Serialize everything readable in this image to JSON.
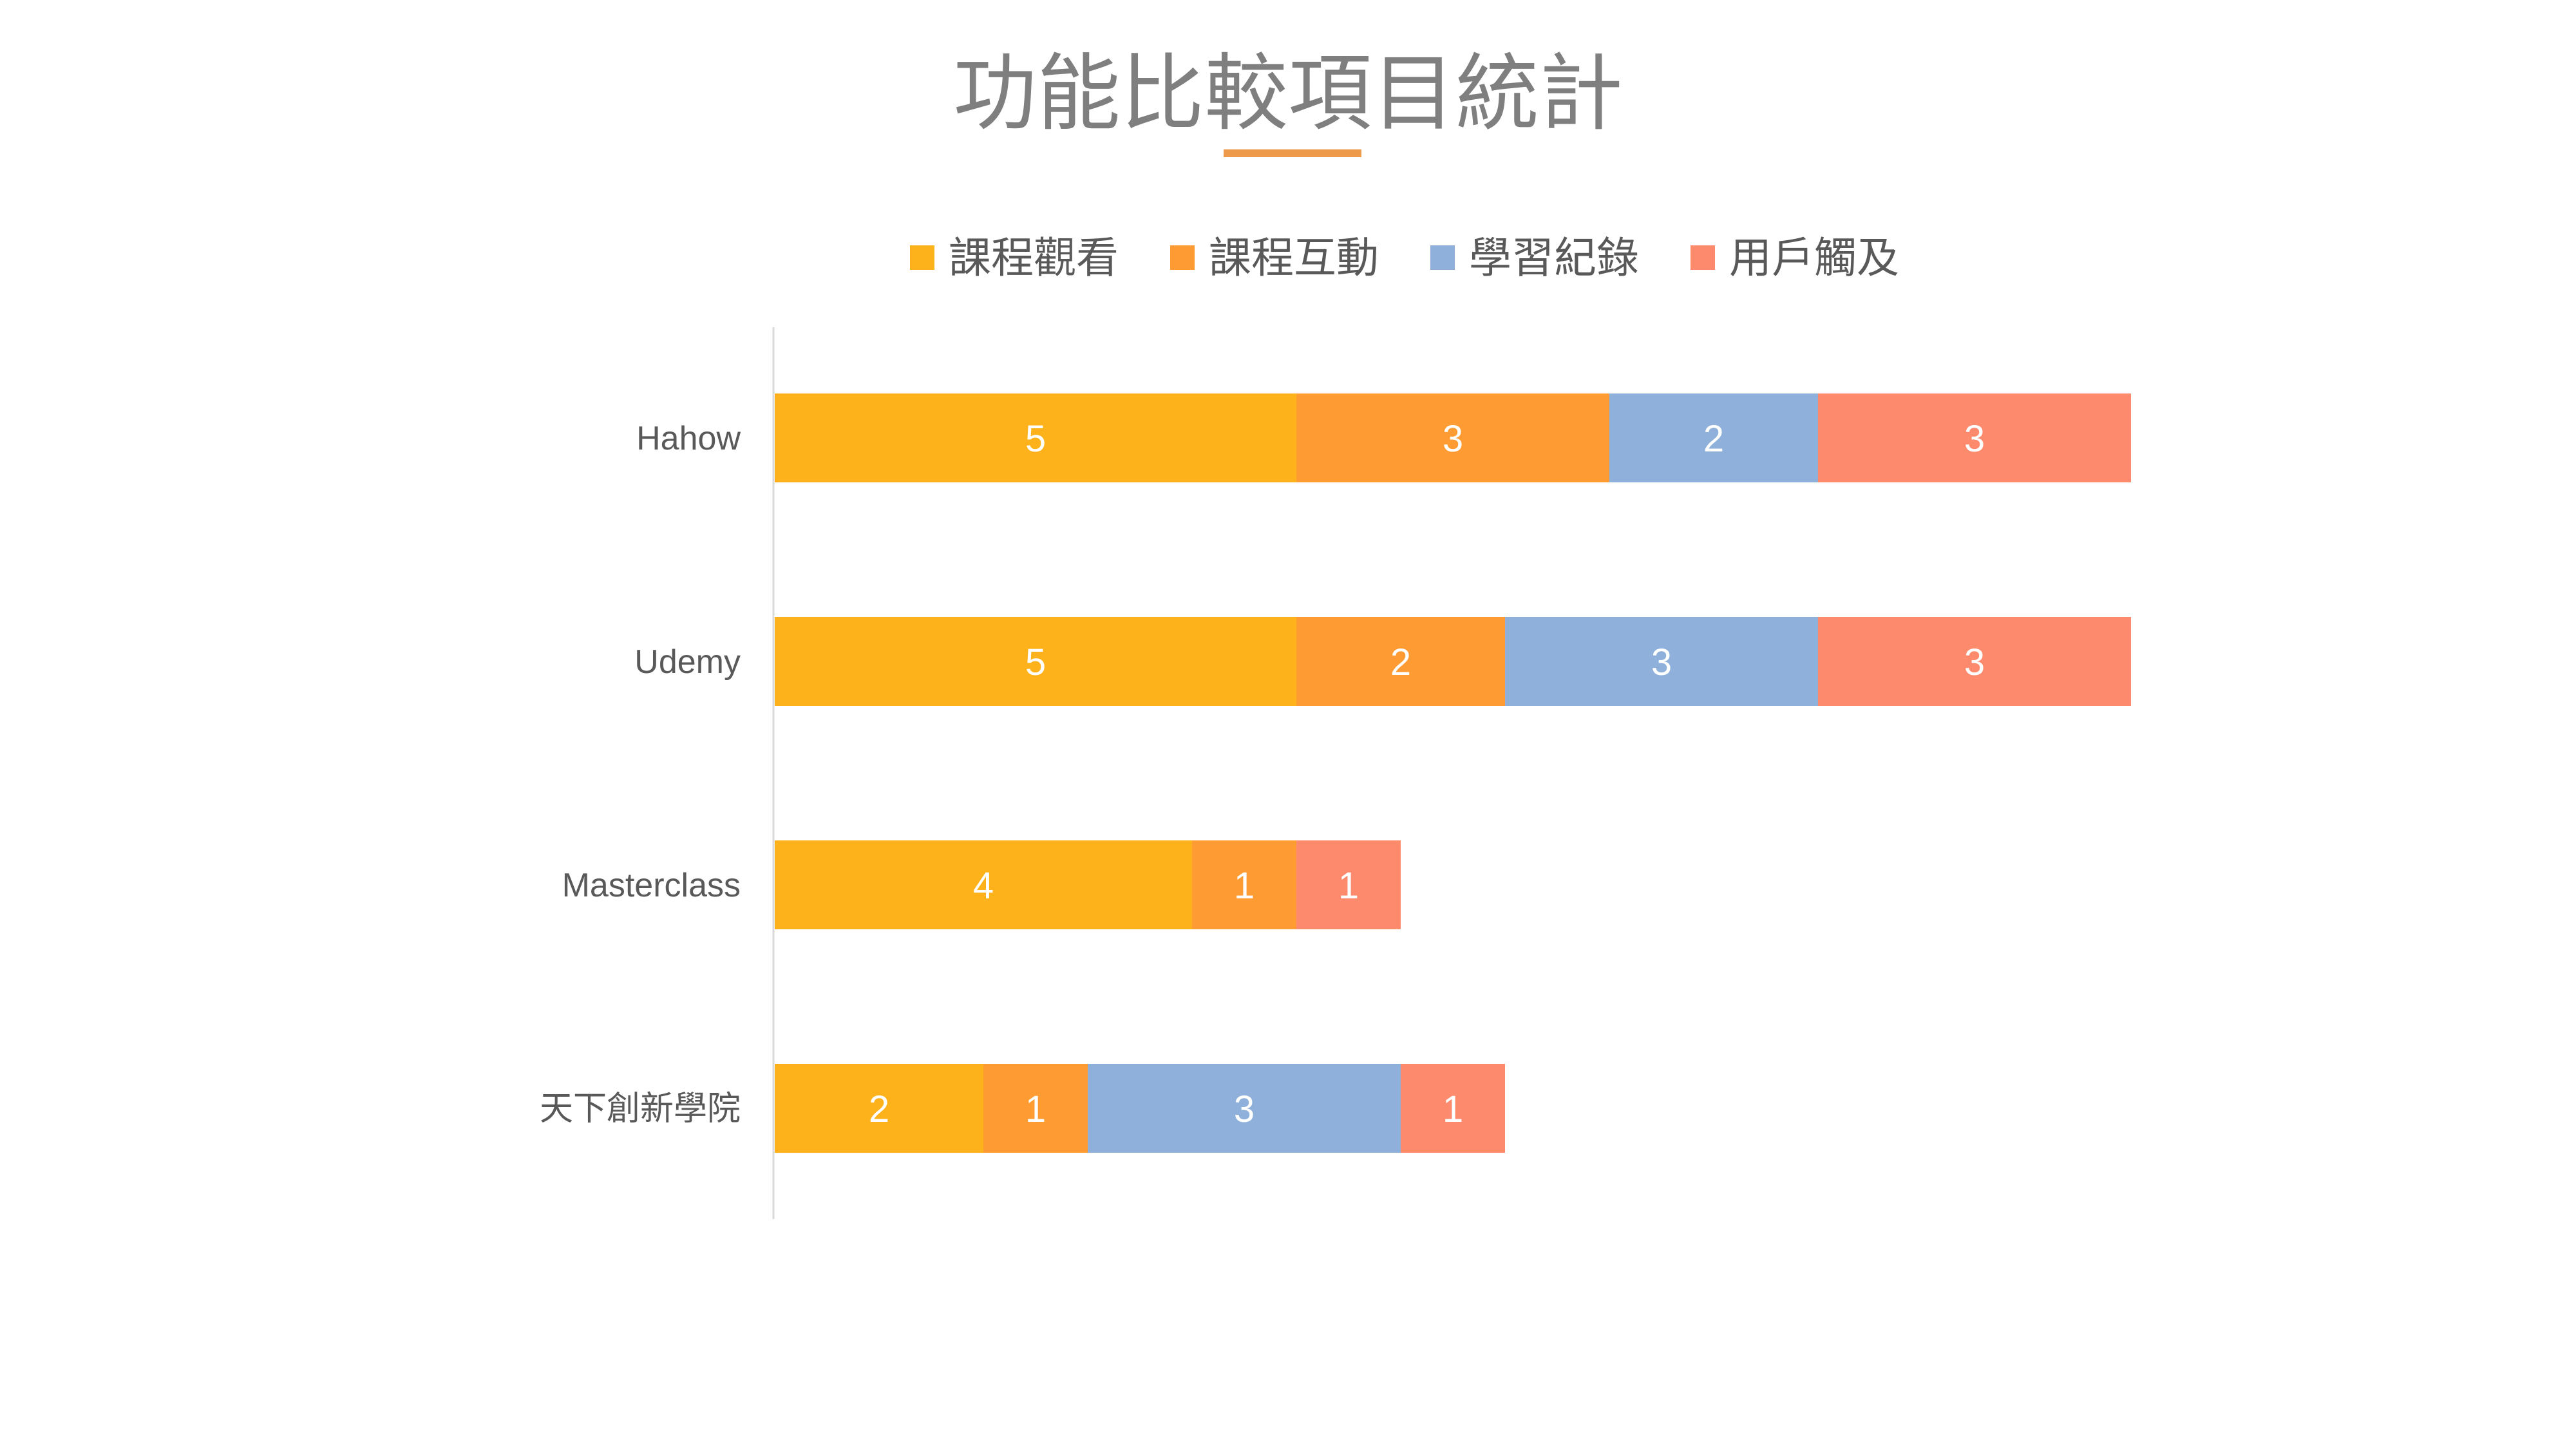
{
  "chart_data": {
    "type": "bar",
    "orientation": "horizontal",
    "stacked": true,
    "title": "功能比較項目統計",
    "categories": [
      "Hahow",
      "Udemy",
      "Masterclass",
      "天下創新學院"
    ],
    "series": [
      {
        "name": "課程觀看",
        "color": "#fdb11a",
        "values": [
          5,
          5,
          4,
          2
        ]
      },
      {
        "name": "課程互動",
        "color": "#fe9c33",
        "values": [
          3,
          2,
          1,
          1
        ]
      },
      {
        "name": "學習紀錄",
        "color": "#8eb0da",
        "values": [
          2,
          3,
          0,
          3
        ]
      },
      {
        "name": "用戶觸及",
        "color": "#fe8a6d",
        "values": [
          3,
          3,
          1,
          1
        ]
      }
    ],
    "xlim": [
      0,
      13
    ],
    "legend": "top",
    "grid": false,
    "data_labels": true,
    "accent_color": "#ed9b4b"
  }
}
